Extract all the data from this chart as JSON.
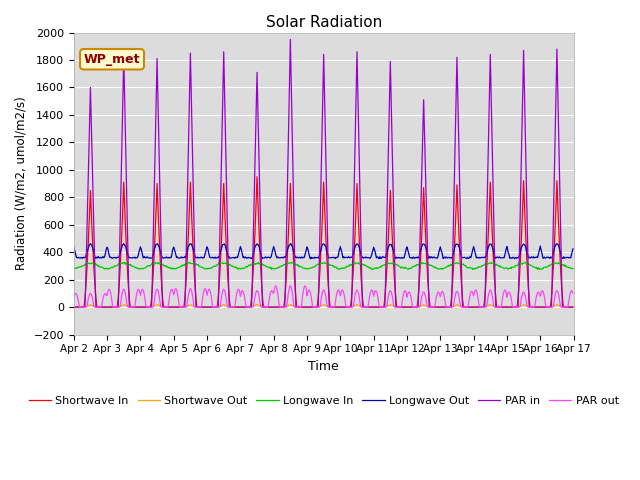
{
  "title": "Solar Radiation",
  "xlabel": "Time",
  "ylabel": "Radiation (W/m2, umol/m2/s)",
  "ylim": [
    -200,
    2000
  ],
  "yticks": [
    -200,
    0,
    200,
    400,
    600,
    800,
    1000,
    1200,
    1400,
    1600,
    1800,
    2000
  ],
  "num_days": 15,
  "points_per_day": 48,
  "series": {
    "shortwave_in": {
      "color": "#FF0000",
      "label": "Shortwave In"
    },
    "shortwave_out": {
      "color": "#FFA500",
      "label": "Shortwave Out"
    },
    "longwave_in": {
      "color": "#00CC00",
      "label": "Longwave In"
    },
    "longwave_out": {
      "color": "#0000BB",
      "label": "Longwave Out"
    },
    "par_in": {
      "color": "#9900CC",
      "label": "PAR in"
    },
    "par_out": {
      "color": "#FF44FF",
      "label": "PAR out"
    }
  },
  "sw_in_peaks": [
    850,
    910,
    900,
    910,
    900,
    950,
    900,
    910,
    900,
    850,
    870,
    890,
    910,
    920,
    920
  ],
  "par_in_peaks": [
    1600,
    1830,
    1810,
    1850,
    1860,
    1710,
    1950,
    1840,
    1860,
    1790,
    1510,
    1820,
    1840,
    1870,
    1880
  ],
  "par_out_peaks": [
    100,
    130,
    130,
    135,
    130,
    120,
    155,
    125,
    125,
    120,
    110,
    115,
    125,
    110,
    120
  ],
  "annotation_text": "WP_met",
  "plot_bg_color": "#DCDCDC",
  "grid_color": "#FFFFFF",
  "fig_bg_color": "#FFFFFF"
}
